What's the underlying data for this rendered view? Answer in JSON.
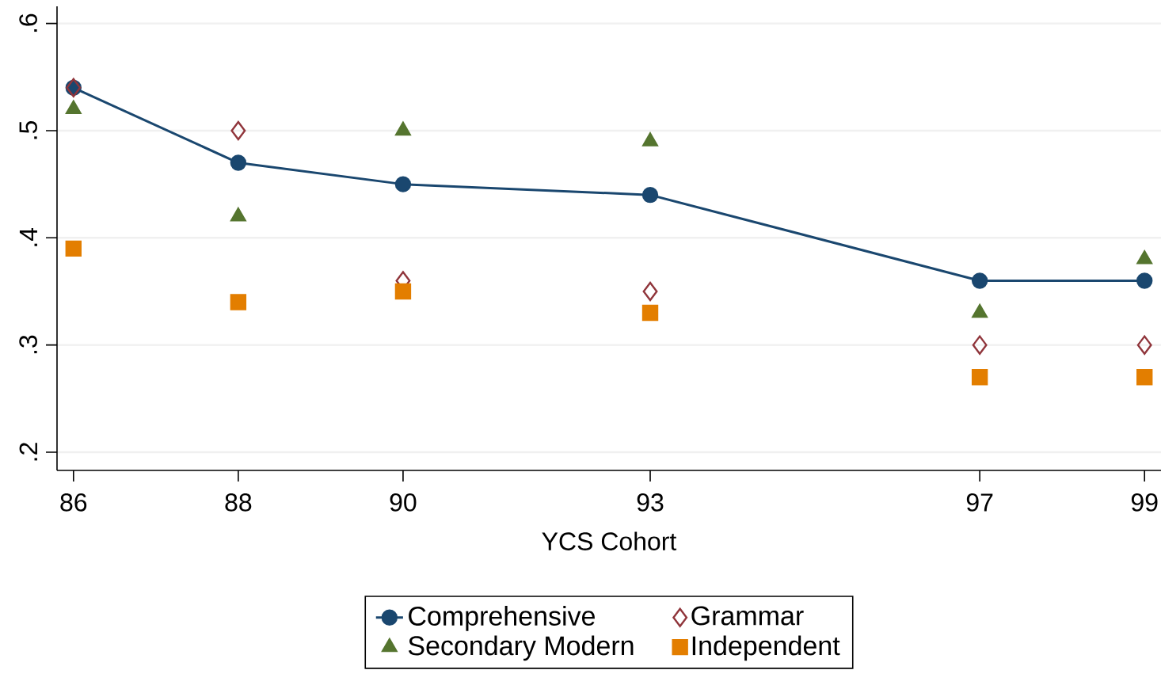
{
  "chart_data": {
    "type": "line",
    "xlabel": "YCS Cohort",
    "x": [
      86,
      88,
      90,
      93,
      97,
      99
    ],
    "series": [
      {
        "name": "Comprehensive",
        "type": "line",
        "marker": "circle",
        "color": "#1a476f",
        "values": [
          0.54,
          0.47,
          0.45,
          0.44,
          0.36,
          0.36
        ]
      },
      {
        "name": "Grammar",
        "type": "scatter",
        "marker": "diamond",
        "color": "#90353b",
        "values": [
          0.54,
          0.5,
          0.36,
          0.35,
          0.3,
          0.3
        ]
      },
      {
        "name": "Secondary Modern",
        "type": "scatter",
        "marker": "triangle",
        "color": "#55752f",
        "values": [
          0.52,
          0.42,
          0.5,
          0.49,
          0.33,
          0.38
        ]
      },
      {
        "name": "Independent",
        "type": "scatter",
        "marker": "square",
        "color": "#e37e00",
        "values": [
          0.39,
          0.34,
          0.35,
          0.33,
          0.27,
          0.27
        ]
      }
    ],
    "xlim": [
      85.8,
      99.2
    ],
    "xticks": [
      86,
      88,
      90,
      93,
      97,
      99
    ],
    "ylim": [
      0.183,
      0.616
    ],
    "yticks": [
      {
        "value": 0.2,
        "label": ".2"
      },
      {
        "value": 0.3,
        "label": ".3"
      },
      {
        "value": 0.4,
        "label": ".4"
      },
      {
        "value": 0.5,
        "label": ".5"
      },
      {
        "value": 0.6,
        "label": ".6"
      }
    ],
    "grid": "y",
    "legend": "bottom"
  }
}
